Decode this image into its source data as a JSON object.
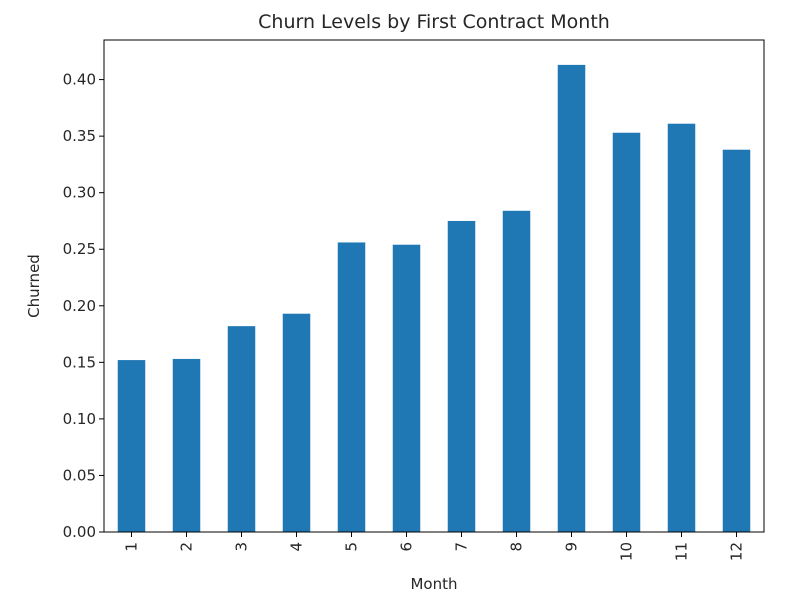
{
  "chart_data": {
    "type": "bar",
    "title": "Churn Levels by First Contract Month",
    "xlabel": "Month",
    "ylabel": "Churned",
    "categories": [
      "1",
      "2",
      "3",
      "4",
      "5",
      "6",
      "7",
      "8",
      "9",
      "10",
      "11",
      "12"
    ],
    "values": [
      0.152,
      0.153,
      0.182,
      0.193,
      0.256,
      0.254,
      0.275,
      0.284,
      0.413,
      0.353,
      0.361,
      0.338
    ],
    "ylim": [
      0,
      0.435
    ],
    "yticks": [
      "0.00",
      "0.05",
      "0.10",
      "0.15",
      "0.20",
      "0.25",
      "0.30",
      "0.35",
      "0.40"
    ],
    "grid": false,
    "legend": "none",
    "bar_color": "#1f77b4"
  }
}
